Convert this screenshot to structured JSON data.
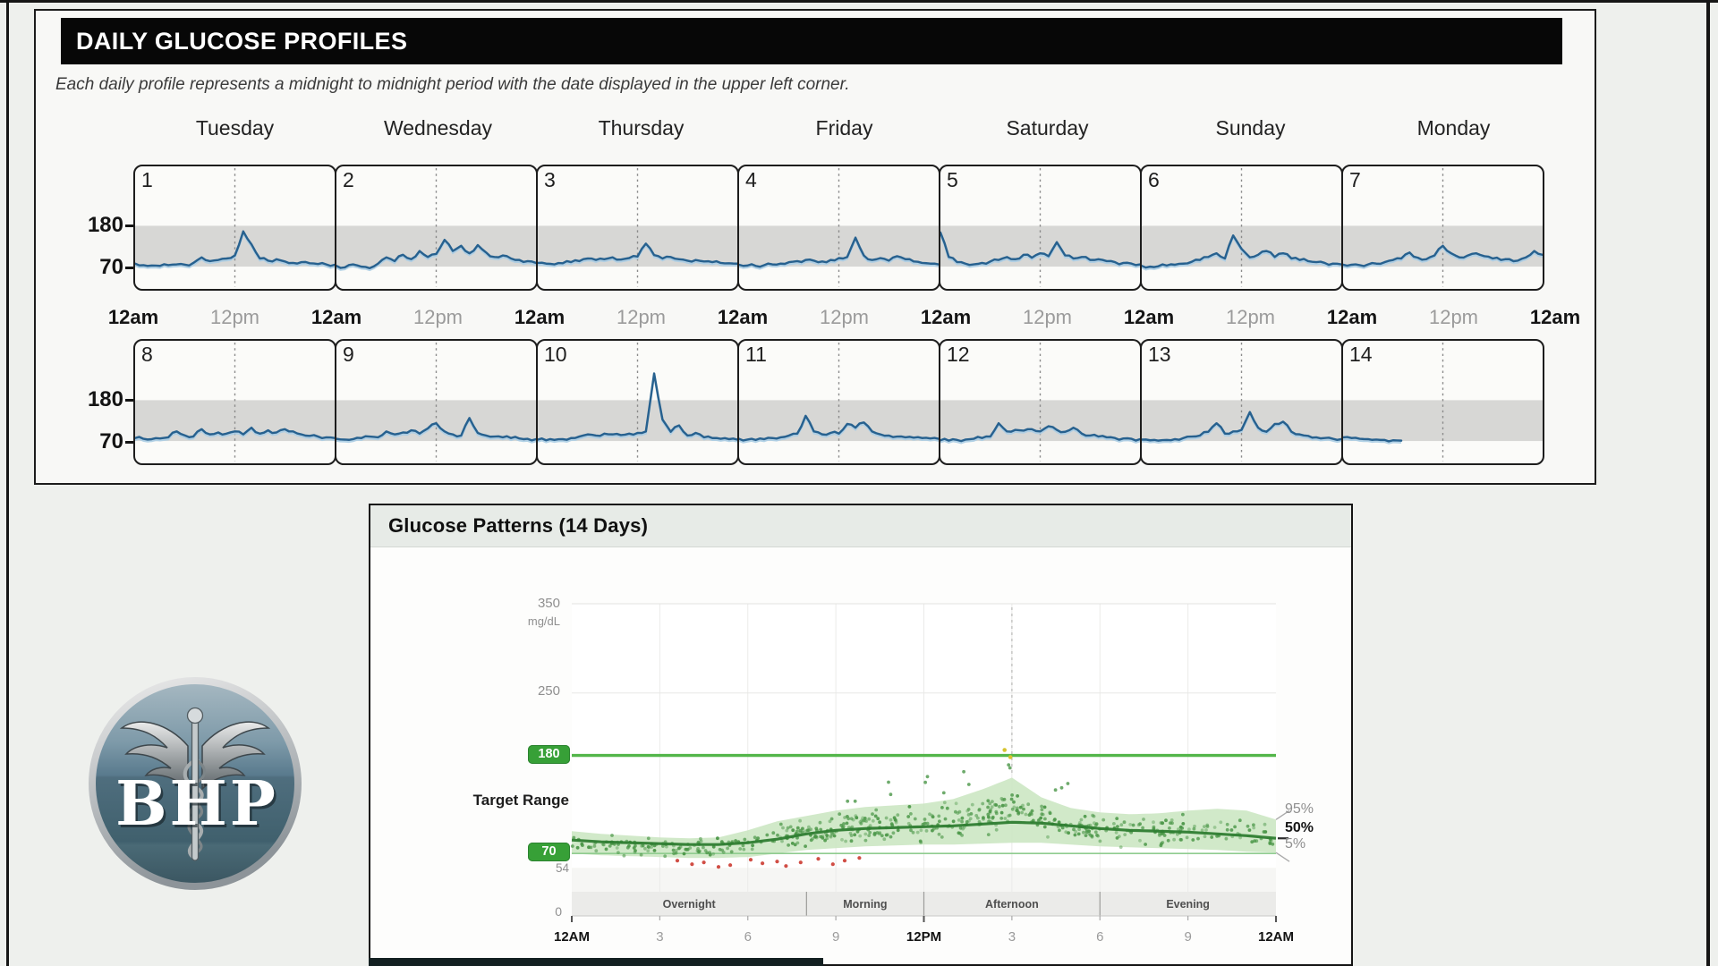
{
  "daily_profiles": {
    "title": "DAILY GLUCOSE PROFILES",
    "subtitle": "Each daily profile represents a midnight to midnight period with the date displayed in the upper left corner.",
    "day_labels": [
      "Tuesday",
      "Wednesday",
      "Thursday",
      "Friday",
      "Saturday",
      "Sunday",
      "Monday"
    ],
    "y_tick_labels": [
      "180",
      "70"
    ],
    "x_labels": [
      "12am",
      "12pm",
      "12am",
      "12pm",
      "12am",
      "12pm",
      "12am",
      "12pm",
      "12am",
      "12pm",
      "12am",
      "12pm",
      "12am",
      "12pm",
      "12am"
    ]
  },
  "patterns": {
    "title": "Glucose Patterns (14 Days)",
    "y_axis": {
      "top": "350",
      "unit": "mg/dL",
      "mid": "250",
      "high_badge": "180",
      "target_label": "Target Range",
      "low_badge": "70",
      "low_tick": "54",
      "zero": "0"
    },
    "x_ticks": [
      {
        "t": 0,
        "label": "12AM",
        "strong": true
      },
      {
        "t": 3,
        "label": "3",
        "strong": false
      },
      {
        "t": 6,
        "label": "6",
        "strong": false
      },
      {
        "t": 9,
        "label": "9",
        "strong": false
      },
      {
        "t": 12,
        "label": "12PM",
        "strong": true
      },
      {
        "t": 15,
        "label": "3",
        "strong": false
      },
      {
        "t": 18,
        "label": "6",
        "strong": false
      },
      {
        "t": 21,
        "label": "9",
        "strong": false
      },
      {
        "t": 24,
        "label": "12AM",
        "strong": true
      }
    ],
    "periods": [
      {
        "label": "Overnight",
        "start": 0,
        "end": 8
      },
      {
        "label": "Morning",
        "start": 8,
        "end": 12
      },
      {
        "label": "Afternoon",
        "start": 12,
        "end": 18
      },
      {
        "label": "Evening",
        "start": 18,
        "end": 24
      }
    ],
    "percentile_labels": {
      "p95": "95%",
      "p50": "50%",
      "p5": "5%"
    }
  },
  "logo": {
    "text": "BHP"
  },
  "style": {
    "trace": "#27618f",
    "trace_glow": "#abcde4",
    "band": "#d7d7d5",
    "green_line": "#53b64a",
    "low_line": "#8fcc8f",
    "median": "#2e7d32",
    "envelope": "#c9e5c0",
    "dot": "#4a9647",
    "low_dot": "#cc3b31",
    "high_dot": "#d6c32e"
  },
  "chart_data": [
    {
      "type": "line",
      "title": "Daily glucose profiles (14 days, midnight to midnight)",
      "ylabel": "mg/dL",
      "unit": "mg/dL",
      "target_low": 70,
      "target_high": 180,
      "value_range": [
        10,
        340
      ],
      "x_hours_step": 1,
      "days": [
        {
          "date": 1,
          "values": [
            78,
            74,
            73,
            72,
            74,
            76,
            75,
            80,
            95,
            85,
            88,
            92,
            100,
            165,
            130,
            92,
            86,
            90,
            84,
            80,
            82,
            79,
            77,
            76,
            75
          ]
        },
        {
          "date": 2,
          "values": [
            72,
            68,
            76,
            70,
            66,
            78,
            95,
            85,
            102,
            90,
            112,
            96,
            104,
            142,
            112,
            126,
            106,
            128,
            108,
            96,
            100,
            92,
            88,
            85,
            80
          ]
        },
        {
          "date": 3,
          "values": [
            80,
            78,
            76,
            79,
            82,
            85,
            92,
            88,
            90,
            95,
            89,
            93,
            97,
            132,
            101,
            92,
            96,
            90,
            86,
            88,
            84,
            82,
            80,
            79,
            78
          ]
        },
        {
          "date": 4,
          "values": [
            75,
            73,
            72,
            74,
            76,
            78,
            82,
            85,
            88,
            86,
            84,
            88,
            93,
            96,
            148,
            100,
            88,
            93,
            86,
            98,
            90,
            84,
            80,
            78,
            76
          ]
        },
        {
          "date": 5,
          "values": [
            162,
            96,
            82,
            78,
            76,
            80,
            84,
            88,
            96,
            90,
            102,
            94,
            106,
            98,
            136,
            100,
            92,
            96,
            88,
            90,
            85,
            82,
            80,
            78,
            76
          ]
        },
        {
          "date": 6,
          "values": [
            72,
            70,
            71,
            73,
            75,
            78,
            83,
            88,
            96,
            106,
            92,
            154,
            118,
            95,
            102,
            112,
            96,
            106,
            92,
            88,
            85,
            82,
            80,
            78,
            76
          ]
        },
        {
          "date": 7,
          "values": [
            75,
            75,
            74,
            76,
            78,
            82,
            88,
            92,
            108,
            94,
            90,
            100,
            126,
            106,
            95,
            100,
            106,
            98,
            92,
            88,
            90,
            86,
            95,
            112,
            102
          ]
        },
        {
          "date": 8,
          "values": [
            78,
            76,
            75,
            77,
            80,
            96,
            85,
            82,
            102,
            88,
            93,
            90,
            96,
            88,
            106,
            90,
            99,
            93,
            102,
            96,
            88,
            84,
            82,
            80,
            78
          ]
        },
        {
          "date": 9,
          "values": [
            76,
            74,
            75,
            78,
            82,
            80,
            96,
            88,
            93,
            99,
            90,
            104,
            118,
            96,
            88,
            85,
            132,
            92,
            85,
            82,
            80,
            78,
            77,
            76,
            75
          ]
        },
        {
          "date": 10,
          "values": [
            74,
            72,
            73,
            75,
            78,
            82,
            88,
            85,
            90,
            88,
            86,
            90,
            92,
            96,
            252,
            128,
            95,
            112,
            85,
            92,
            80,
            78,
            76,
            75,
            74
          ]
        },
        {
          "date": 11,
          "values": [
            76,
            74,
            73,
            75,
            78,
            80,
            85,
            90,
            138,
            96,
            88,
            92,
            90,
            116,
            106,
            120,
            96,
            88,
            85,
            82,
            80,
            79,
            78,
            77,
            76
          ]
        },
        {
          "date": 12,
          "values": [
            72,
            71,
            73,
            74,
            76,
            78,
            82,
            118,
            96,
            100,
            98,
            102,
            96,
            110,
            100,
            95,
            106,
            90,
            85,
            82,
            80,
            78,
            77,
            76,
            75
          ]
        },
        {
          "date": 13,
          "values": [
            74,
            72,
            71,
            73,
            75,
            78,
            82,
            85,
            95,
            118,
            90,
            96,
            100,
            148,
            106,
            95,
            116,
            122,
            95,
            88,
            84,
            80,
            78,
            76,
            75
          ]
        },
        {
          "date": 14,
          "values": [
            80,
            78,
            76,
            75,
            74,
            73,
            72,
            71
          ]
        }
      ]
    },
    {
      "type": "scatter",
      "title": "Glucose Patterns (14 Days)",
      "ylabel": "mg/dL",
      "ylim": [
        0,
        350
      ],
      "xlim_hours": [
        0,
        24
      ],
      "target_low": 70,
      "target_high": 180,
      "low_threshold": 54,
      "dashed_hour": 15,
      "hours": [
        0,
        1,
        2,
        3,
        4,
        5,
        6,
        7,
        8,
        9,
        10,
        11,
        12,
        13,
        14,
        15,
        16,
        17,
        18,
        19,
        20,
        21,
        22,
        23,
        24
      ],
      "p50": [
        85,
        83,
        82,
        81,
        80,
        80,
        82,
        86,
        92,
        96,
        98,
        99,
        100,
        101,
        103,
        105,
        104,
        101,
        98,
        96,
        95,
        94,
        92,
        90,
        87
      ],
      "p5": [
        70,
        68,
        67,
        66,
        65,
        65,
        66,
        70,
        74,
        76,
        78,
        79,
        80,
        80,
        81,
        82,
        82,
        80,
        78,
        77,
        76,
        75,
        74,
        72,
        71
      ],
      "p95": [
        95,
        92,
        90,
        88,
        87,
        88,
        96,
        106,
        112,
        118,
        122,
        124,
        126,
        131,
        142,
        155,
        133,
        121,
        116,
        114,
        115,
        118,
        120,
        118,
        108
      ],
      "low_points": [
        [
          3.6,
          62
        ],
        [
          4.1,
          58
        ],
        [
          4.5,
          60
        ],
        [
          5.0,
          55
        ],
        [
          5.4,
          57
        ],
        [
          6.1,
          63
        ],
        [
          6.5,
          59
        ],
        [
          7.0,
          61
        ],
        [
          7.3,
          56
        ],
        [
          7.8,
          60
        ],
        [
          8.4,
          64
        ],
        [
          8.9,
          58
        ],
        [
          9.3,
          62
        ],
        [
          9.8,
          65
        ]
      ],
      "high_points": [
        [
          14.75,
          186
        ],
        [
          14.95,
          178
        ]
      ],
      "scatter": {
        "count": 560,
        "outliers": 14,
        "seed": 11
      }
    }
  ]
}
